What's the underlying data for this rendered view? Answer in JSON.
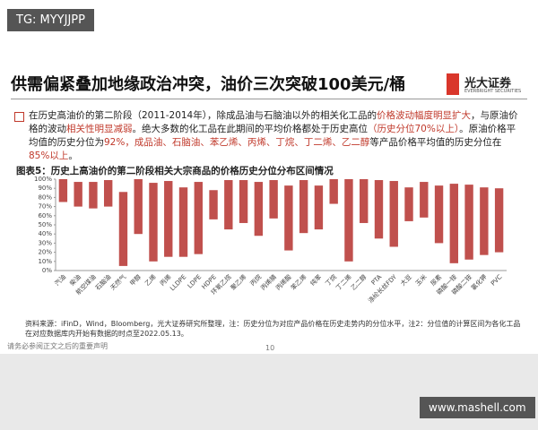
{
  "watermark_top": "TG: MYYJJPP",
  "header": {
    "title": "供需偏紧叠加地缘政治冲突，油价三次突破100美元/桶",
    "logo_name": "光大证券",
    "logo_sub": "EVERBRIGHT SECURITIES"
  },
  "paragraph": [
    {
      "text": "在历史高油价的第二阶段（2011-2014年），除成品油与石脑油以外的相关化工品的",
      "red": false
    },
    {
      "text": "价格波动幅度明显扩大",
      "red": true
    },
    {
      "text": "，与原油价格的波动",
      "red": false
    },
    {
      "text": "相关性明显减弱",
      "red": true
    },
    {
      "text": "。绝大多数的化工品在此期间的平均价格都处于历史高位",
      "red": false
    },
    {
      "text": "（历史分位70%以上）",
      "red": true
    },
    {
      "text": "。原油价格平均值的历史分位为",
      "red": false
    },
    {
      "text": "92%，成品油、石脑油、苯乙烯、丙烯、丁烷、丁二烯、乙二醇",
      "red": true
    },
    {
      "text": "等产品价格平均值的历史分位在",
      "red": false
    },
    {
      "text": "85%以上",
      "red": true
    },
    {
      "text": "。",
      "red": false
    }
  ],
  "chart_data": {
    "type": "bar",
    "title": "图表5：历史上高油价的第二阶段相关大宗商品的价格历史分位分布区间情况",
    "categories": [
      "汽油",
      "柴油",
      "航空煤油",
      "石脑油",
      "天然气",
      "甲醇",
      "乙烯",
      "丙烯",
      "LLDPE",
      "LDPE",
      "HDPE",
      "环氧乙烷",
      "聚乙烯",
      "丙烷",
      "丙烯腈",
      "丙烯酸",
      "苯乙烯",
      "纯苯",
      "丁烷",
      "丁二烯",
      "乙二醇",
      "PTA",
      "涤纶长丝FDY",
      "大豆",
      "玉米",
      "尿素",
      "磷酸一铵",
      "磷酸二铵",
      "氯化钾",
      "PVC"
    ],
    "starts": [
      75,
      70,
      68,
      70,
      5,
      40,
      10,
      15,
      15,
      18,
      56,
      45,
      52,
      38,
      57,
      22,
      41,
      45,
      73,
      10,
      52,
      35,
      26,
      54,
      58,
      30,
      8,
      12,
      17,
      20
    ],
    "ends": [
      100,
      97,
      97,
      99,
      86,
      100,
      96,
      98,
      91,
      97,
      88,
      99,
      99,
      97,
      99,
      93,
      99,
      93,
      100,
      100,
      100,
      99,
      98,
      91,
      97,
      93,
      95,
      94,
      91,
      90
    ],
    "color": "#c0504d",
    "ylim": [
      0,
      100
    ],
    "yticks": [
      {
        "value": 0,
        "label": "0%"
      },
      {
        "value": 10,
        "label": "10%"
      },
      {
        "value": 20,
        "label": "20%"
      },
      {
        "value": 30,
        "label": "30%"
      },
      {
        "value": 40,
        "label": "40%"
      },
      {
        "value": 50,
        "label": "50%"
      },
      {
        "value": 60,
        "label": "60%"
      },
      {
        "value": 70,
        "label": "70%"
      },
      {
        "value": 80,
        "label": "80%"
      },
      {
        "value": 90,
        "label": "90%"
      },
      {
        "value": 100,
        "label": "100%"
      }
    ],
    "grid": false
  },
  "source": "资料来源：iFinD，Wind，Bloomberg，光大证券研究所整理，注：历史分位为对应产品价格在历史走势内的分位水平，注2：分位值的计算区间为各化工品在对应数据库内开始有数据的时点至2022.05.13。",
  "footer": {
    "disclaimer": "请务必参阅正文之后的重要声明",
    "page": "10"
  },
  "watermark_bottom": "www.mashell.com"
}
